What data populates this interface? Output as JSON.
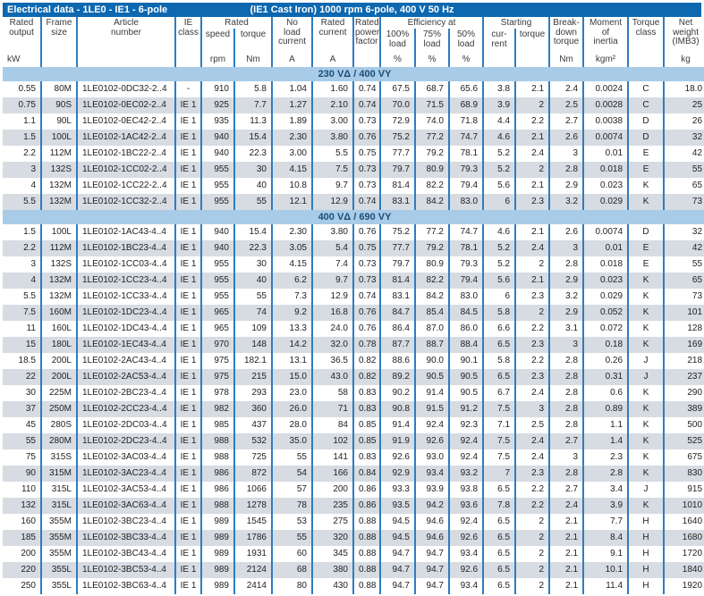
{
  "title": {
    "left": "Electrical data - 1LE0 - IE1 - 6-pole",
    "right": "(IE1 Cast Iron) 1000 rpm 6-pole, 400 V 50 Hz"
  },
  "header": {
    "rated_output": "Rated\noutput",
    "frame_size": "Frame\nsize",
    "article_number": "Article\nnumber",
    "ie_class": "IE\nclass",
    "rated_group": "Rated",
    "speed": "speed",
    "torque": "torque",
    "no_load_current": "No\nload\ncurrent",
    "rated_current": "Rated\ncurrent",
    "power_factor": "Rated\npower\nfactor",
    "efficiency_group": "Efficiency at",
    "load100": "100%\nload",
    "load75": "75%\nload",
    "load50": "50%\nload",
    "starting_group": "Starting",
    "starting_current": "cur-\nrent",
    "starting_torque": "torque",
    "breakdown_torque": "Break-\ndown\ntorque",
    "moment_of_inertia": "Moment\nof\ninertia",
    "torque_class": "Torque\nclass",
    "net_weight": "Net\nweight\n(IMB3)",
    "units": {
      "rated_output": "kW",
      "rated_speed": "rpm",
      "rated_torque": "Nm",
      "no_load_current": "A",
      "rated_current": "A",
      "eff_100": "%",
      "eff_75": "%",
      "eff_50": "%",
      "breakdown_torque": "Nm",
      "moment_of_inertia": "kgm²",
      "net_weight": "kg"
    }
  },
  "column_keys": [
    "rated_output",
    "frame_size",
    "article_number",
    "ie_class",
    "rated_speed",
    "rated_torque",
    "no_load_current",
    "rated_current",
    "power_factor",
    "eff_100",
    "eff_75",
    "eff_50",
    "starting_current",
    "starting_torque",
    "breakdown_torque",
    "moment_of_inertia",
    "torque_class",
    "net_weight"
  ],
  "sections": [
    {
      "label": "230 VΔ / 400 VY",
      "rows": [
        [
          "0.55",
          "80M",
          "1LE0102-0DC32-2..4",
          "-",
          "910",
          "5.8",
          "1.04",
          "1.60",
          "0.74",
          "67.5",
          "68.7",
          "65.6",
          "3.8",
          "2.1",
          "2.4",
          "0.0024",
          "C",
          "18.0"
        ],
        [
          "0.75",
          "90S",
          "1LE0102-0EC02-2..4",
          "IE 1",
          "925",
          "7.7",
          "1.27",
          "2.10",
          "0.74",
          "70.0",
          "71.5",
          "68.9",
          "3.9",
          "2",
          "2.5",
          "0.0028",
          "C",
          "25"
        ],
        [
          "1.1",
          "90L",
          "1LE0102-0EC42-2..4",
          "IE 1",
          "935",
          "11.3",
          "1.89",
          "3.00",
          "0.73",
          "72.9",
          "74.0",
          "71.8",
          "4.4",
          "2.2",
          "2.7",
          "0.0038",
          "D",
          "26"
        ],
        [
          "1.5",
          "100L",
          "1LE0102-1AC42-2..4",
          "IE 1",
          "940",
          "15.4",
          "2.30",
          "3.80",
          "0.76",
          "75.2",
          "77.2",
          "74.7",
          "4.6",
          "2.1",
          "2.6",
          "0.0074",
          "D",
          "32"
        ],
        [
          "2.2",
          "112M",
          "1LE0102-1BC22-2..4",
          "IE 1",
          "940",
          "22.3",
          "3.00",
          "5.5",
          "0.75",
          "77.7",
          "79.2",
          "78.1",
          "5.2",
          "2.4",
          "3",
          "0.01",
          "E",
          "42"
        ],
        [
          "3",
          "132S",
          "1LE0102-1CC02-2..4",
          "IE 1",
          "955",
          "30",
          "4.15",
          "7.5",
          "0.73",
          "79.7",
          "80.9",
          "79.3",
          "5.2",
          "2",
          "2.8",
          "0.018",
          "E",
          "55"
        ],
        [
          "4",
          "132M",
          "1LE0102-1CC22-2..4",
          "IE 1",
          "955",
          "40",
          "10.8",
          "9.7",
          "0.73",
          "81.4",
          "82.2",
          "79.4",
          "5.6",
          "2.1",
          "2.9",
          "0.023",
          "K",
          "65"
        ],
        [
          "5.5",
          "132M",
          "1LE0102-1CC32-2..4",
          "IE 1",
          "955",
          "55",
          "12.1",
          "12.9",
          "0.74",
          "83.1",
          "84.2",
          "83.0",
          "6",
          "2.3",
          "3.2",
          "0.029",
          "K",
          "73"
        ]
      ]
    },
    {
      "label": "400 VΔ / 690 VY",
      "rows": [
        [
          "1.5",
          "100L",
          "1LE0102-1AC43-4..4",
          "IE 1",
          "940",
          "15.4",
          "2.30",
          "3.80",
          "0.76",
          "75.2",
          "77.2",
          "74.7",
          "4.6",
          "2.1",
          "2.6",
          "0.0074",
          "D",
          "32"
        ],
        [
          "2.2",
          "112M",
          "1LE0102-1BC23-4..4",
          "IE 1",
          "940",
          "22.3",
          "3.05",
          "5.4",
          "0.75",
          "77.7",
          "79.2",
          "78.1",
          "5.2",
          "2.4",
          "3",
          "0.01",
          "E",
          "42"
        ],
        [
          "3",
          "132S",
          "1LE0102-1CC03-4..4",
          "IE 1",
          "955",
          "30",
          "4.15",
          "7.4",
          "0.73",
          "79.7",
          "80.9",
          "79.3",
          "5.2",
          "2",
          "2.8",
          "0.018",
          "E",
          "55"
        ],
        [
          "4",
          "132M",
          "1LE0102-1CC23-4..4",
          "IE 1",
          "955",
          "40",
          "6.2",
          "9.7",
          "0.73",
          "81.4",
          "82.2",
          "79.4",
          "5.6",
          "2.1",
          "2.9",
          "0.023",
          "K",
          "65"
        ],
        [
          "5.5",
          "132M",
          "1LE0102-1CC33-4..4",
          "IE 1",
          "955",
          "55",
          "7.3",
          "12.9",
          "0.74",
          "83.1",
          "84.2",
          "83.0",
          "6",
          "2.3",
          "3.2",
          "0.029",
          "K",
          "73"
        ],
        [
          "7.5",
          "160M",
          "1LE0102-1DC23-4..4",
          "IE 1",
          "965",
          "74",
          "9.2",
          "16.8",
          "0.76",
          "84.7",
          "85.4",
          "84.5",
          "5.8",
          "2",
          "2.9",
          "0.052",
          "K",
          "101"
        ],
        [
          "11",
          "160L",
          "1LE0102-1DC43-4..4",
          "IE 1",
          "965",
          "109",
          "13.3",
          "24.0",
          "0.76",
          "86.4",
          "87.0",
          "86.0",
          "6.6",
          "2.2",
          "3.1",
          "0.072",
          "K",
          "128"
        ],
        [
          "15",
          "180L",
          "1LE0102-1EC43-4..4",
          "IE 1",
          "970",
          "148",
          "14.2",
          "32.0",
          "0.78",
          "87.7",
          "88.7",
          "88.4",
          "6.5",
          "2.3",
          "3",
          "0.18",
          "K",
          "169"
        ],
        [
          "18.5",
          "200L",
          "1LE0102-2AC43-4..4",
          "IE 1",
          "975",
          "182.1",
          "13.1",
          "36.5",
          "0.82",
          "88.6",
          "90.0",
          "90.1",
          "5.8",
          "2.2",
          "2.8",
          "0.26",
          "J",
          "218"
        ],
        [
          "22",
          "200L",
          "1LE0102-2AC53-4..4",
          "IE 1",
          "975",
          "215",
          "15.0",
          "43.0",
          "0.82",
          "89.2",
          "90.5",
          "90.5",
          "6.5",
          "2.3",
          "2.8",
          "0.31",
          "J",
          "237"
        ],
        [
          "30",
          "225M",
          "1LE0102-2BC23-4..4",
          "IE 1",
          "978",
          "293",
          "23.0",
          "58",
          "0.83",
          "90.2",
          "91.4",
          "90.5",
          "6.7",
          "2.4",
          "2.8",
          "0.6",
          "K",
          "290"
        ],
        [
          "37",
          "250M",
          "1LE0102-2CC23-4..4",
          "IE 1",
          "982",
          "360",
          "26.0",
          "71",
          "0.83",
          "90.8",
          "91.5",
          "91.2",
          "7.5",
          "3",
          "2.8",
          "0.89",
          "K",
          "389"
        ],
        [
          "45",
          "280S",
          "1LE0102-2DC03-4..4",
          "IE 1",
          "985",
          "437",
          "28.0",
          "84",
          "0.85",
          "91.4",
          "92.4",
          "92.3",
          "7.1",
          "2.5",
          "2.8",
          "1.1",
          "K",
          "500"
        ],
        [
          "55",
          "280M",
          "1LE0102-2DC23-4..4",
          "IE 1",
          "988",
          "532",
          "35.0",
          "102",
          "0.85",
          "91.9",
          "92.6",
          "92.4",
          "7.5",
          "2.4",
          "2.7",
          "1.4",
          "K",
          "525"
        ],
        [
          "75",
          "315S",
          "1LE0102-3AC03-4..4",
          "IE 1",
          "988",
          "725",
          "55",
          "141",
          "0.83",
          "92.6",
          "93.0",
          "92.4",
          "7.5",
          "2.4",
          "3",
          "2.3",
          "K",
          "675"
        ],
        [
          "90",
          "315M",
          "1LE0102-3AC23-4..4",
          "IE 1",
          "986",
          "872",
          "54",
          "166",
          "0.84",
          "92.9",
          "93.4",
          "93.2",
          "7",
          "2.3",
          "2.8",
          "2.8",
          "K",
          "830"
        ],
        [
          "110",
          "315L",
          "1LE0102-3AC53-4..4",
          "IE 1",
          "986",
          "1066",
          "57",
          "200",
          "0.86",
          "93.3",
          "93.9",
          "93.8",
          "6.5",
          "2.2",
          "2.7",
          "3.4",
          "J",
          "915"
        ],
        [
          "132",
          "315L",
          "1LE0102-3AC63-4..4",
          "IE 1",
          "988",
          "1278",
          "78",
          "235",
          "0.86",
          "93.5",
          "94.2",
          "93.6",
          "7.8",
          "2.2",
          "2.4",
          "3.9",
          "K",
          "1010"
        ],
        [
          "160",
          "355M",
          "1LE0102-3BC23-4..4",
          "IE 1",
          "989",
          "1545",
          "53",
          "275",
          "0.88",
          "94.5",
          "94.6",
          "92.4",
          "6.5",
          "2",
          "2.1",
          "7.7",
          "H",
          "1640"
        ],
        [
          "185",
          "355M",
          "1LE0102-3BC33-4..4",
          "IE 1",
          "989",
          "1786",
          "55",
          "320",
          "0.88",
          "94.5",
          "94.6",
          "92.6",
          "6.5",
          "2",
          "2.1",
          "8.4",
          "H",
          "1680"
        ],
        [
          "200",
          "355M",
          "1LE0102-3BC43-4..4",
          "IE 1",
          "989",
          "1931",
          "60",
          "345",
          "0.88",
          "94.7",
          "94.7",
          "93.4",
          "6.5",
          "2",
          "2.1",
          "9.1",
          "H",
          "1720"
        ],
        [
          "220",
          "355L",
          "1LE0102-3BC53-4..4",
          "IE 1",
          "989",
          "2124",
          "68",
          "380",
          "0.88",
          "94.7",
          "94.7",
          "92.6",
          "6.5",
          "2",
          "2.1",
          "10.1",
          "H",
          "1840"
        ],
        [
          "250",
          "355L",
          "1LE0102-3BC63-4..4",
          "IE 1",
          "989",
          "2414",
          "80",
          "430",
          "0.88",
          "94.7",
          "94.7",
          "93.4",
          "6.5",
          "2",
          "2.1",
          "11.4",
          "H",
          "1920"
        ]
      ]
    }
  ],
  "colors": {
    "title_bar": "#0d68b0",
    "section_bar": "#a8cbe7",
    "section_text": "#1c4e78",
    "grid_line": "#2e7cc0",
    "stripe_row": "#d6dce2"
  }
}
